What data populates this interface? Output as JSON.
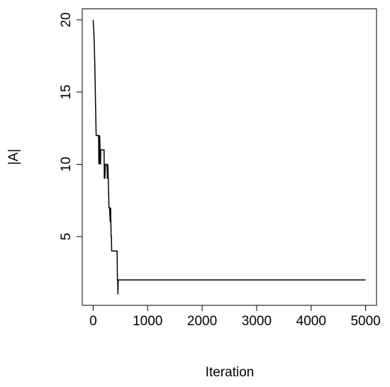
{
  "chart_data": {
    "type": "line",
    "x_label": "Iteration",
    "y_label": "|A|",
    "x": [
      0,
      15,
      30,
      45,
      55,
      60,
      100,
      105,
      110,
      115,
      120,
      135,
      140,
      145,
      150,
      200,
      205,
      210,
      215,
      225,
      230,
      255,
      260,
      270,
      285,
      290,
      300,
      315,
      320,
      325,
      330,
      335,
      340,
      345,
      350,
      440,
      445,
      450,
      455,
      460,
      465,
      470,
      5000
    ],
    "values": [
      20,
      19,
      17,
      14,
      12,
      12,
      12,
      10,
      12,
      10,
      12,
      10,
      11,
      11,
      11,
      11,
      9,
      10,
      9,
      10,
      10,
      10,
      9,
      10,
      8,
      7,
      7,
      6,
      7,
      6,
      5,
      5,
      4,
      4,
      4,
      4,
      2,
      2,
      1,
      2,
      2,
      2,
      2
    ],
    "color": "#000000",
    "xlim": [
      -200,
      5200
    ],
    "xticks": [
      0,
      1000,
      2000,
      3000,
      4000,
      5000
    ],
    "ylim": [
      0.24,
      20.76
    ],
    "yticks": [
      5,
      10,
      15,
      20
    ]
  }
}
